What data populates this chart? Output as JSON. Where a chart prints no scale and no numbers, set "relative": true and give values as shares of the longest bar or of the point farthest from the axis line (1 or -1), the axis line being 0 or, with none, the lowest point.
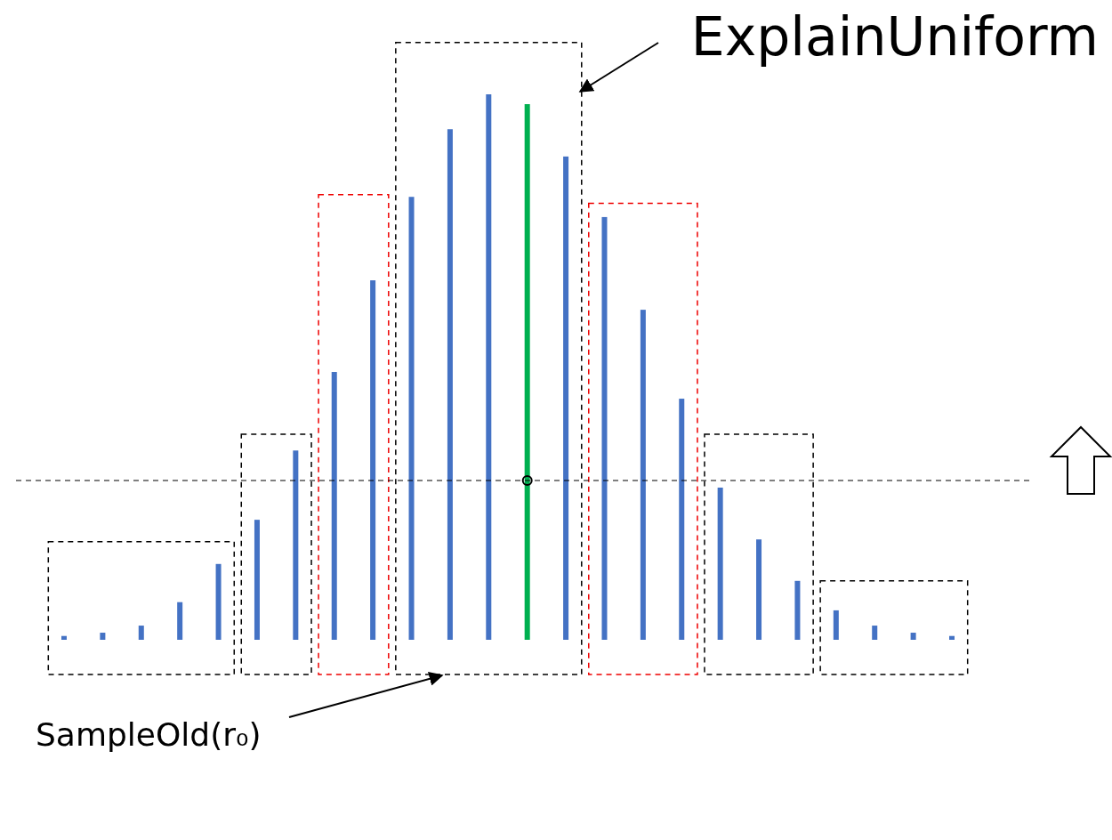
{
  "chart_data": {
    "type": "bar",
    "relative": true,
    "categories": [
      null,
      null,
      null,
      null,
      null,
      null,
      null,
      null,
      null,
      null,
      null,
      null,
      null,
      null,
      null,
      null,
      null,
      null,
      null,
      null,
      null,
      null,
      null,
      null
    ],
    "values": [
      0.007,
      0.013,
      0.026,
      0.069,
      0.139,
      0.22,
      0.347,
      0.491,
      0.659,
      0.812,
      0.936,
      1,
      0.982,
      0.886,
      0.775,
      0.605,
      0.442,
      0.279,
      0.184,
      0.108,
      0.054,
      0.026,
      0.013,
      0.007
    ],
    "colors": [
      "#4472c4",
      "#4472c4",
      "#4472c4",
      "#4472c4",
      "#4472c4",
      "#4472c4",
      "#4472c4",
      "#4472c4",
      "#4472c4",
      "#4472c4",
      "#4472c4",
      "#4472c4",
      "#00b050",
      "#4472c4",
      "#4472c4",
      "#4472c4",
      "#4472c4",
      "#4472c4",
      "#4472c4",
      "#4472c4",
      "#4472c4",
      "#4472c4",
      "#4472c4",
      "#4472c4"
    ],
    "ref_lines": [
      {
        "axis": "y",
        "value": 0.292,
        "color": "#000000",
        "line_style": "dashed"
      }
    ],
    "annotations": [
      "ExplainUniform",
      "SampleOld(r₀)"
    ]
  }
}
